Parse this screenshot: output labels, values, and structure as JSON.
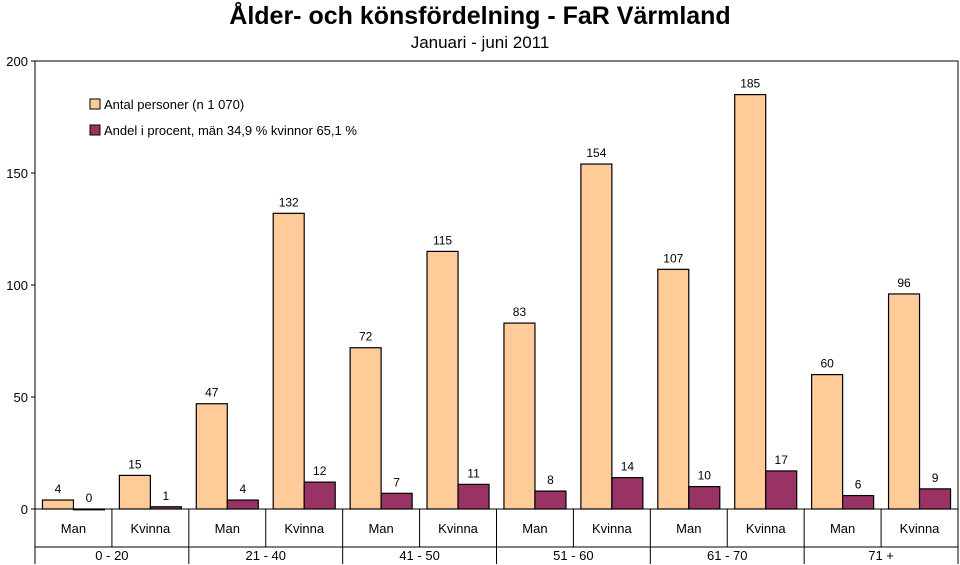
{
  "chart_data": {
    "type": "bar",
    "title": "Ålder- och könsfördelning - FaR Värmland",
    "subtitle": "Januari - juni 2011",
    "groups": [
      "0 - 20",
      "21 - 40",
      "41 - 50",
      "51 - 60",
      "61 - 70",
      "71 +"
    ],
    "categories": [
      "Man",
      "Kvinna",
      "Man",
      "Kvinna",
      "Man",
      "Kvinna",
      "Man",
      "Kvinna",
      "Man",
      "Kvinna",
      "Man",
      "Kvinna"
    ],
    "series": [
      {
        "name": "Antal personer (n 1 070)",
        "color": "#FFCC99",
        "values": [
          4,
          15,
          47,
          132,
          72,
          115,
          83,
          154,
          107,
          185,
          60,
          96
        ]
      },
      {
        "name": "Andel i procent, män 34,9 % kvinnor 65,1 %",
        "color": "#993366",
        "values": [
          0,
          1,
          4,
          12,
          7,
          11,
          8,
          14,
          10,
          17,
          6,
          9
        ]
      }
    ],
    "yticks": [
      0,
      50,
      100,
      150,
      200
    ],
    "ylim": [
      0,
      200
    ],
    "grid": false,
    "legend": "top-left"
  }
}
